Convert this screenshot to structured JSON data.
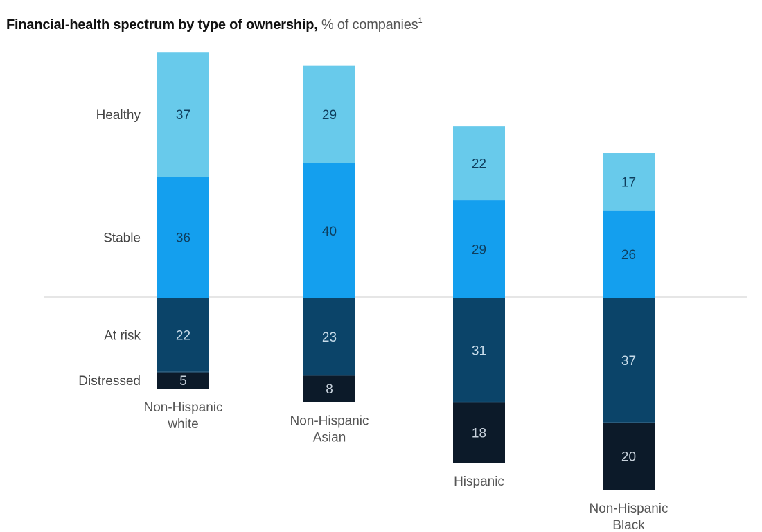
{
  "chart_data": {
    "type": "bar",
    "stacked": true,
    "diverging": true,
    "title": "Financial-health spectrum by type of ownership,",
    "subtitle": "% of companies",
    "footnote_marker": "1",
    "xlabel": "",
    "ylabel": "",
    "grid": false,
    "legend": "left (row labels beside first bar)",
    "categories": [
      [
        "Non-Hispanic",
        "white"
      ],
      [
        "Non-Hispanic",
        "Asian"
      ],
      [
        "Hispanic"
      ],
      [
        "Non-Hispanic",
        "Black"
      ]
    ],
    "series": [
      {
        "name": "Healthy",
        "direction": "up",
        "color": "#68CAEB",
        "text_color": "#0E3D5C",
        "values": [
          37,
          29,
          22,
          17
        ]
      },
      {
        "name": "Stable",
        "direction": "up",
        "color": "#149FEE",
        "text_color": "#0E3D5C",
        "values": [
          36,
          40,
          29,
          26
        ]
      },
      {
        "name": "At risk",
        "direction": "down",
        "color": "#0B4469",
        "text_color": "#C8DCEA",
        "values": [
          22,
          23,
          31,
          37
        ]
      },
      {
        "name": "Distressed",
        "direction": "down",
        "color": "#0C1A29",
        "text_color": "#C8D2DC",
        "values": [
          5,
          8,
          18,
          20
        ]
      }
    ],
    "ylim": [
      -57,
      73
    ],
    "baseline_color": "#DDDDDD"
  }
}
